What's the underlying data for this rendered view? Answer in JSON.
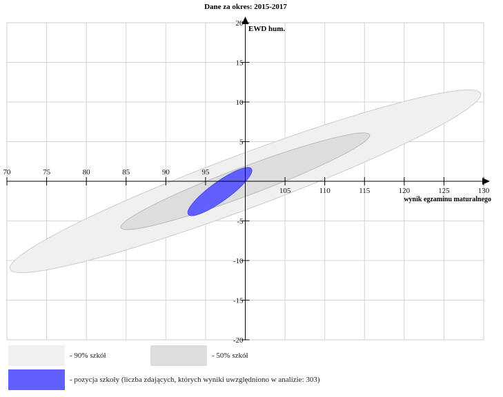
{
  "chart_data": {
    "type": "scatter",
    "title": "Dane za okres: 2015-2017",
    "xlabel": "wynik egzaminu maturalnego",
    "ylabel": "EWD hum.",
    "xlim": [
      70,
      130
    ],
    "ylim": [
      -20,
      20
    ],
    "xticks": [
      70,
      75,
      80,
      85,
      90,
      95,
      100,
      105,
      110,
      115,
      120,
      125,
      130
    ],
    "yticks": [
      -20,
      -15,
      -10,
      -5,
      0,
      5,
      10,
      15,
      20
    ],
    "xtick_labels": [
      "70",
      "75",
      "80",
      "85",
      "90",
      "95",
      "",
      "105",
      "110",
      "115",
      "120",
      "125",
      "130"
    ],
    "ytick_labels": [
      "-20",
      "-15",
      "-10",
      "-5",
      "",
      "5",
      "10",
      "15",
      "20"
    ],
    "grid": true,
    "ellipses": [
      {
        "name": "90% szkół",
        "cx": 100,
        "cy": 0,
        "rx_units": 31.6,
        "ry_units": 3.4,
        "angle_deg": -20.5,
        "color": "#f0f0f0",
        "stroke": "#cccccc"
      },
      {
        "name": "50% szkół",
        "cx": 100,
        "cy": 0,
        "rx_units": 16.7,
        "ry_units": 1.8,
        "angle_deg": -20.5,
        "color": "#dddddd",
        "stroke": "#bbbbbb"
      },
      {
        "name": "pozycja szkoły",
        "cx": 96.8,
        "cy": -1.3,
        "rx_units": 4.9,
        "ry_units": 1.2,
        "angle_deg": -36,
        "color": "#6060ff",
        "stroke": "#4a4aee"
      }
    ]
  },
  "legend": {
    "items": [
      {
        "label": "- 90% szkół",
        "color": "#f0f0f0"
      },
      {
        "label": "- 50% szkół",
        "color": "#dddddd"
      },
      {
        "label": "- pozycja szkoły (liczba zdających, których wyniki uwzględniono w analizie: 303)",
        "color": "#6060ff"
      }
    ]
  }
}
